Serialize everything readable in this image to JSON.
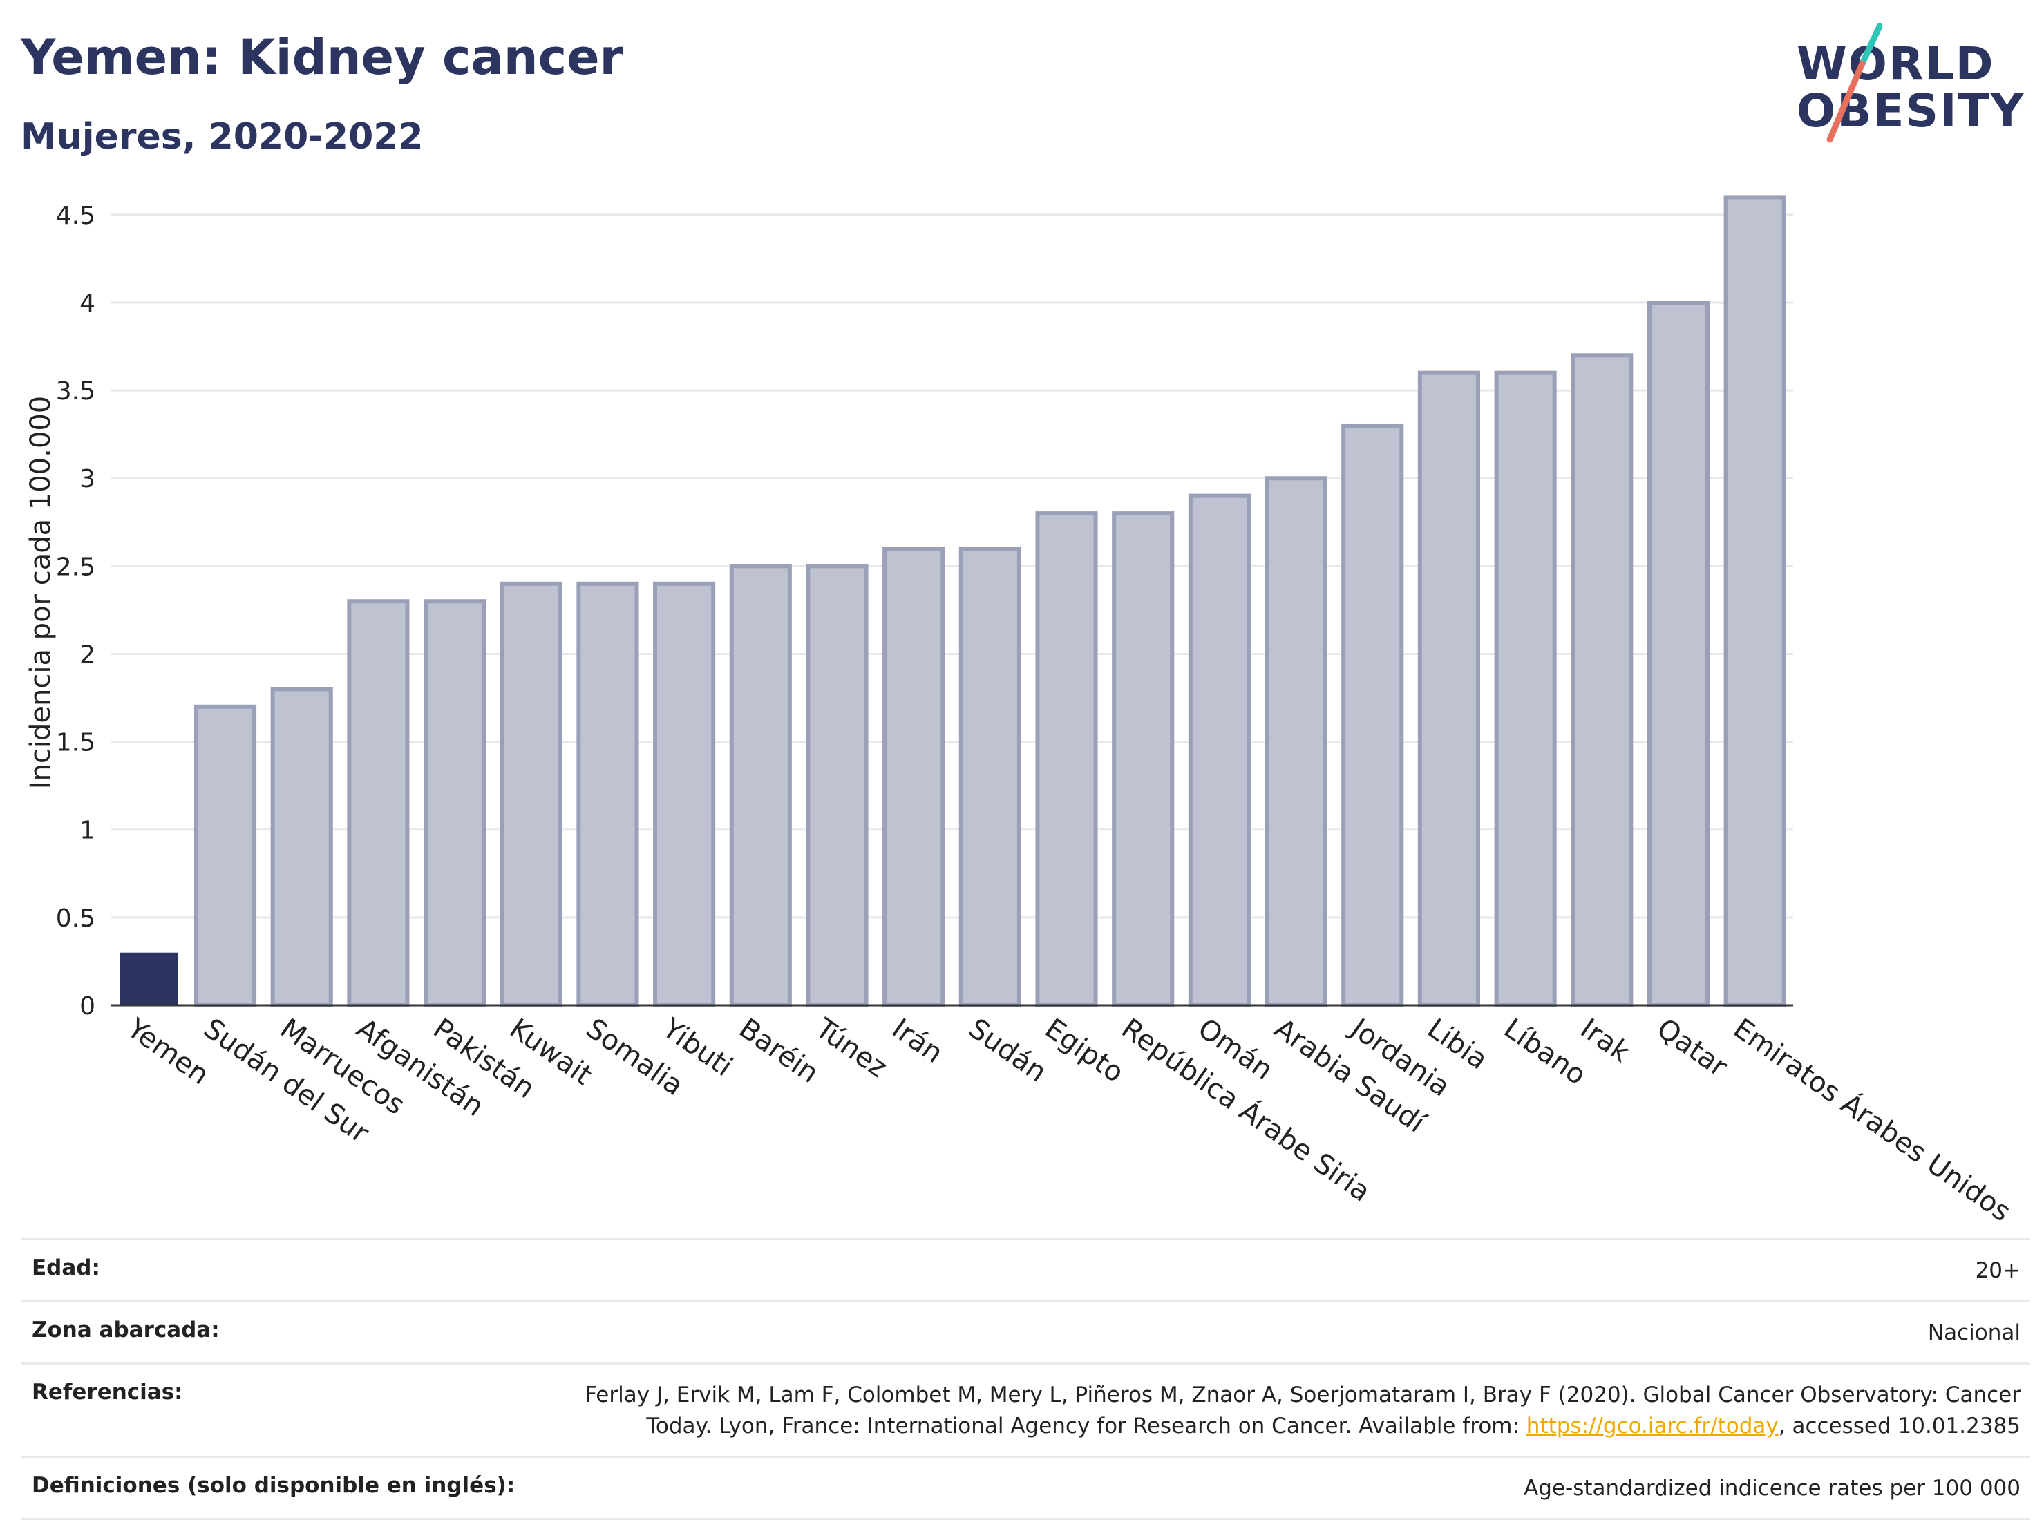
{
  "header": {
    "title": "Yemen: Kidney cancer",
    "subtitle": "Mujeres, 2020-2022"
  },
  "logo": {
    "line1": "WORLD",
    "line2": "OBESITY",
    "slash_colors": [
      "#2ec4b6",
      "#e8705f"
    ]
  },
  "colors": {
    "highlight_bar": "#2b3560",
    "other_bar_fill": "#bfc3d1",
    "other_bar_stroke": "#9aa0b8",
    "grid": "#e8e8ee",
    "text": "#222222"
  },
  "chart_data": {
    "type": "bar",
    "title": "Yemen: Kidney cancer",
    "subtitle": "Mujeres, 2020-2022",
    "xlabel": "",
    "ylabel": "Incidencia por cada 100.000",
    "ylim": [
      0,
      4.7
    ],
    "yticks": [
      0,
      0.5,
      1,
      1.5,
      2,
      2.5,
      3,
      3.5,
      4,
      4.5
    ],
    "ytick_labels": [
      "0",
      "0.5",
      "1",
      "1.5",
      "2",
      "2.5",
      "3",
      "3.5",
      "4",
      "4.5"
    ],
    "grid": true,
    "highlight": "Yemen",
    "categories": [
      "Yemen",
      "Sudán del Sur",
      "Marruecos",
      "Afganistán",
      "Pakistán",
      "Kuwait",
      "Somalia",
      "Yibuti",
      "Baréin",
      "Túnez",
      "Irán",
      "Sudán",
      "Egipto",
      "República Árabe Siria",
      "Omán",
      "Arabia Saudí",
      "Jordania",
      "Libia",
      "Líbano",
      "Irak",
      "Qatar",
      "Emiratos Árabes Unidos"
    ],
    "values": [
      0.3,
      1.7,
      1.8,
      2.3,
      2.3,
      2.4,
      2.4,
      2.4,
      2.5,
      2.5,
      2.6,
      2.6,
      2.8,
      2.8,
      2.9,
      3.0,
      3.3,
      3.6,
      3.6,
      3.7,
      4.0,
      4.6
    ]
  },
  "footer": {
    "edad": {
      "label": "Edad:",
      "value": "20+"
    },
    "zona": {
      "label": "Zona abarcada:",
      "value": "Nacional"
    },
    "referencias": {
      "label": "Referencias:",
      "line1": "Ferlay J, Ervik M, Lam F, Colombet M, Mery L, Piñeros M, Znaor A, Soerjomataram I, Bray F (2020). Global Cancer Observatory: Cancer",
      "line2_before": "Today. Lyon, France: International Agency for Research on Cancer. Available from: ",
      "link": "https://gco.iarc.fr/today",
      "line2_after": ", accessed 10.01.2385"
    },
    "definiciones": {
      "label": "Definiciones (solo disponible en inglés):",
      "value": "Age-standardized indicence rates per 100 000"
    }
  }
}
